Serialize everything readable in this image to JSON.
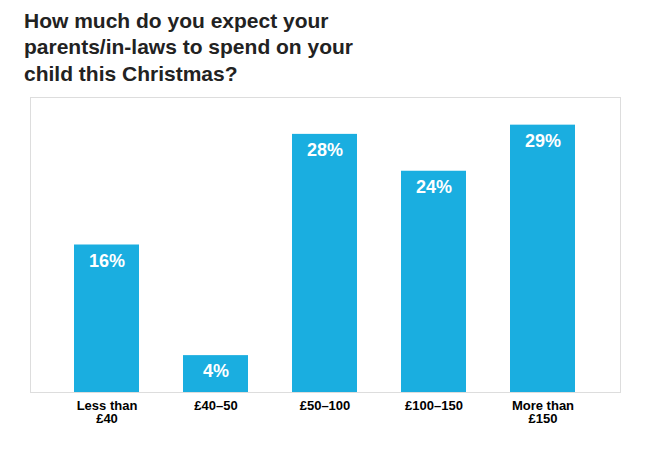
{
  "chart_data": {
    "type": "bar",
    "title": "How much do you expect your\nparents/in-laws to spend on your\nchild this Christmas?",
    "categories": [
      "Less than\n£40",
      "£40–50",
      "£50–100",
      "£100–150",
      "More than\n£150"
    ],
    "values": [
      16,
      4,
      28,
      24,
      29
    ],
    "value_labels": [
      "16%",
      "4%",
      "28%",
      "24%",
      "29%"
    ],
    "data_labels": true,
    "color": "#1aaee0",
    "ylim": [
      0,
      32
    ],
    "grid": false,
    "tick_labels": "x"
  }
}
